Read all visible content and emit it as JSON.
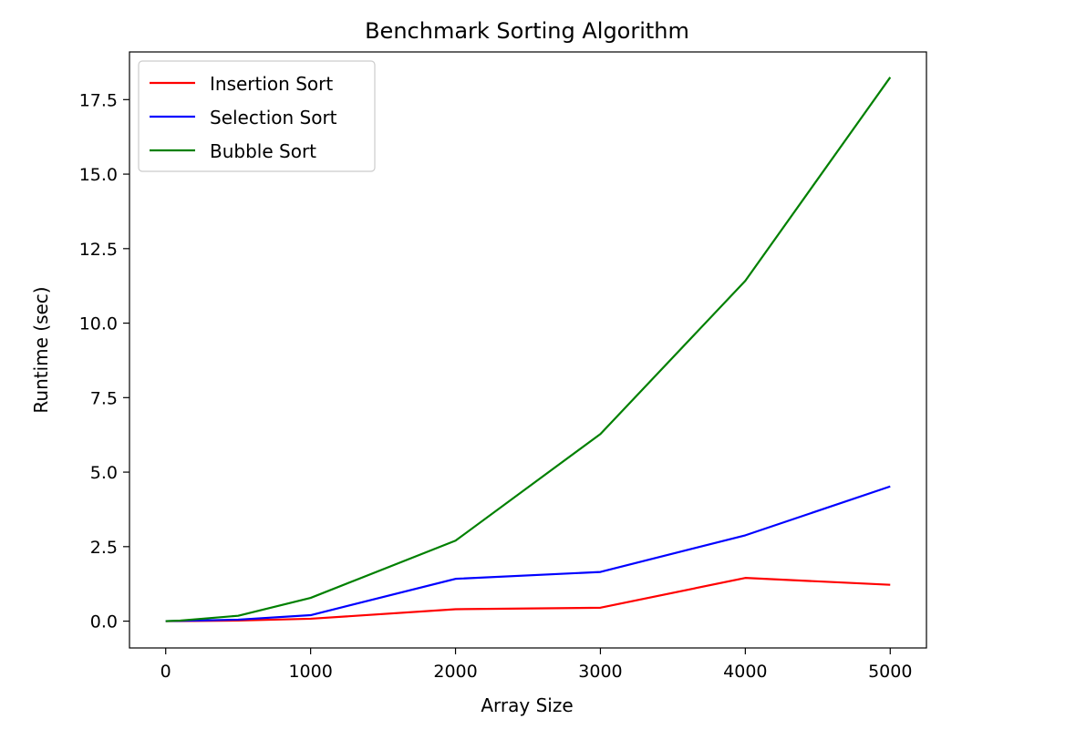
{
  "chart_data": {
    "type": "line",
    "title": "Benchmark Sorting Algorithm",
    "xlabel": "Array Size",
    "ylabel": "Runtime (sec)",
    "xlim": [
      -250,
      5250
    ],
    "ylim": [
      -0.9,
      19.1
    ],
    "xticks": [
      0,
      1000,
      2000,
      3000,
      4000,
      5000
    ],
    "yticks": [
      0.0,
      2.5,
      5.0,
      7.5,
      10.0,
      12.5,
      15.0,
      17.5
    ],
    "xtick_labels": [
      "0",
      "1000",
      "2000",
      "3000",
      "4000",
      "5000"
    ],
    "ytick_labels": [
      "0.0",
      "2.5",
      "5.0",
      "7.5",
      "10.0",
      "12.5",
      "15.0",
      "17.5"
    ],
    "grid": false,
    "legend_position": "upper-left",
    "x": [
      0,
      100,
      500,
      1000,
      2000,
      3000,
      4000,
      5000
    ],
    "series": [
      {
        "name": "Insertion Sort",
        "color": "#ff0000",
        "values": [
          0.0,
          0.0,
          0.02,
          0.08,
          0.4,
          0.45,
          1.45,
          1.22
        ]
      },
      {
        "name": "Selection Sort",
        "color": "#0000ff",
        "values": [
          0.0,
          0.01,
          0.05,
          0.2,
          1.42,
          1.65,
          2.88,
          4.52
        ]
      },
      {
        "name": "Bubble Sort",
        "color": "#008000",
        "values": [
          0.0,
          0.02,
          0.18,
          0.78,
          2.7,
          6.28,
          11.42,
          18.25
        ]
      }
    ]
  }
}
